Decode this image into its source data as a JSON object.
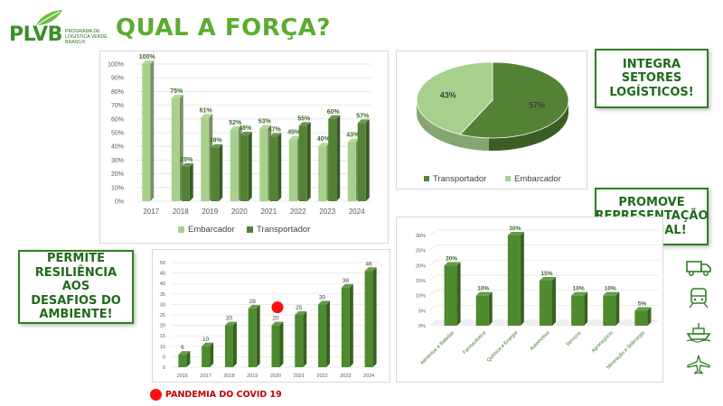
{
  "logo": {
    "text": "PLVB",
    "subtitle_lines": [
      "PROGRAMA DE",
      "LOGÍSTICA VERDE",
      "BRASIL®"
    ]
  },
  "slide_title": "QUAL A FORÇA?",
  "callouts": {
    "integra": [
      "INTEGRA",
      "SETORES",
      "LOGÍSTICOS!"
    ],
    "promove": [
      "PROMOVE",
      "REPRESENTAÇÃO",
      "SETORIAL!"
    ],
    "resiliencia": [
      "PERMITE",
      "RESILIÊNCIA AOS",
      "DESAFIOS DO",
      "AMBIENTE!"
    ]
  },
  "covid_note": "PANDEMIA DO COVID 19",
  "colors": {
    "light_green": "#a8d08d",
    "dark_green": "#548235",
    "mid_green": "#4e8a2e",
    "title_green": "#5aac2f",
    "covid_red": "#ff1010"
  },
  "icons": [
    "truck-icon",
    "train-icon",
    "ship-icon",
    "plane-icon"
  ],
  "chart_data": [
    {
      "type": "bar",
      "id": "share-by-year",
      "categories": [
        "2017",
        "2018",
        "2019",
        "2020",
        "2021",
        "2022",
        "2023",
        "2024"
      ],
      "series": [
        {
          "name": "Embarcador",
          "values": [
            100,
            75,
            61,
            52,
            53,
            45,
            40,
            43
          ],
          "labels": [
            "100%",
            "75%",
            "61%",
            "52%",
            "53%",
            "45%",
            "40%",
            "43%"
          ]
        },
        {
          "name": "Transportador",
          "values": [
            0,
            25,
            39,
            48,
            47,
            55,
            60,
            57
          ],
          "labels": [
            "",
            "25%",
            "39%",
            "48%",
            "47%",
            "55%",
            "60%",
            "57%"
          ]
        }
      ],
      "ylim": [
        0,
        100
      ],
      "yticks": [
        "0%",
        "10%",
        "20%",
        "30%",
        "40%",
        "50%",
        "60%",
        "70%",
        "80%",
        "90%",
        "100%"
      ],
      "grid": true,
      "legend_position": "bottom"
    },
    {
      "type": "pie",
      "id": "share-total",
      "slices": [
        {
          "name": "Transportador",
          "value": 57,
          "label": "57%"
        },
        {
          "name": "Embarcador",
          "value": 43,
          "label": "43%"
        }
      ],
      "legend_position": "bottom"
    },
    {
      "type": "bar",
      "id": "members-by-year",
      "categories": [
        "2016",
        "2017",
        "2018",
        "2019",
        "2020",
        "2021",
        "2022",
        "2023",
        "2024"
      ],
      "values": [
        6,
        10,
        20,
        28,
        20,
        25,
        30,
        38,
        46
      ],
      "labels": [
        "6",
        "10",
        "20",
        "28",
        "20",
        "25",
        "30",
        "38",
        "46"
      ],
      "ylim": [
        0,
        50
      ],
      "yticks": [
        "0",
        "5",
        "10",
        "15",
        "20",
        "25",
        "30",
        "35",
        "40",
        "45",
        "50"
      ],
      "grid": true,
      "marker_category": "2020"
    },
    {
      "type": "bar",
      "id": "sectors",
      "categories": [
        "Alimentos e Bebidas",
        "Farmacêutica",
        "Química e Energia",
        "Automotiva",
        "Serviços",
        "Agronegócio",
        "Mineração e Siderurgia"
      ],
      "values": [
        20,
        10,
        30,
        15,
        10,
        10,
        5
      ],
      "labels": [
        "20%",
        "10%",
        "30%",
        "15%",
        "10%",
        "10%",
        "5%"
      ],
      "ylim": [
        0,
        30
      ],
      "yticks": [
        "0%",
        "5%",
        "10%",
        "15%",
        "20%",
        "25%",
        "30%"
      ],
      "grid": true
    }
  ]
}
